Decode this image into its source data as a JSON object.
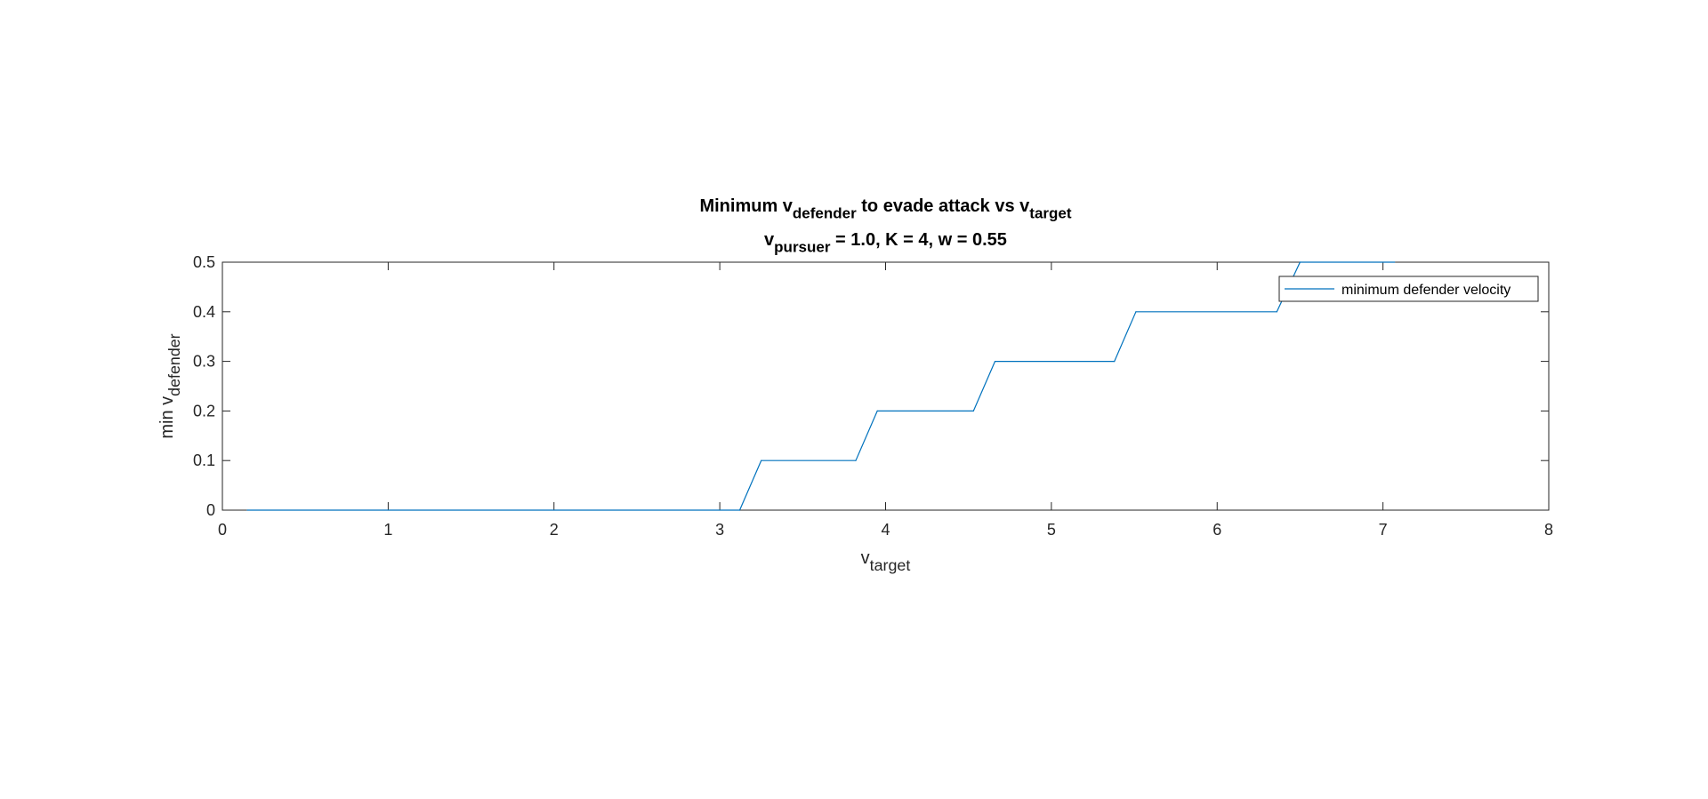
{
  "chart_data": {
    "type": "line",
    "title": {
      "line1": [
        {
          "text": "Minimum v",
          "sub": false
        },
        {
          "text": "defender",
          "sub": true
        },
        {
          "text": " to evade attack vs v",
          "sub": false
        },
        {
          "text": "target",
          "sub": true
        }
      ],
      "line2": [
        {
          "text": "v",
          "sub": false
        },
        {
          "text": "pursuer",
          "sub": true
        },
        {
          "text": " = 1.0, K = 4, w = 0.55",
          "sub": false
        }
      ]
    },
    "xlabel": {
      "main": "v",
      "sub": "target"
    },
    "ylabel": {
      "main": "min v",
      "sub": "defender"
    },
    "xlim": [
      0,
      8
    ],
    "ylim": [
      0,
      0.5
    ],
    "xticks": [
      0,
      1,
      2,
      3,
      4,
      5,
      6,
      7,
      8
    ],
    "xtick_labels": [
      "0",
      "1",
      "2",
      "3",
      "4",
      "5",
      "6",
      "7",
      "8"
    ],
    "yticks": [
      0,
      0.1,
      0.2,
      0.3,
      0.4,
      0.5
    ],
    "ytick_labels": [
      "0",
      "0.1",
      "0.2",
      "0.3",
      "0.4",
      "0.5"
    ],
    "grid": false,
    "legend_position": "top-right",
    "series": [
      {
        "name": "minimum defender velocity",
        "color": "#0072BD",
        "x": [
          0.15,
          3.12,
          3.25,
          3.82,
          3.95,
          4.53,
          4.66,
          5.38,
          5.51,
          6.36,
          6.5,
          7.07
        ],
        "y": [
          0,
          0,
          0.1,
          0.1,
          0.2,
          0.2,
          0.3,
          0.3,
          0.4,
          0.4,
          0.5,
          0.5
        ]
      }
    ]
  }
}
